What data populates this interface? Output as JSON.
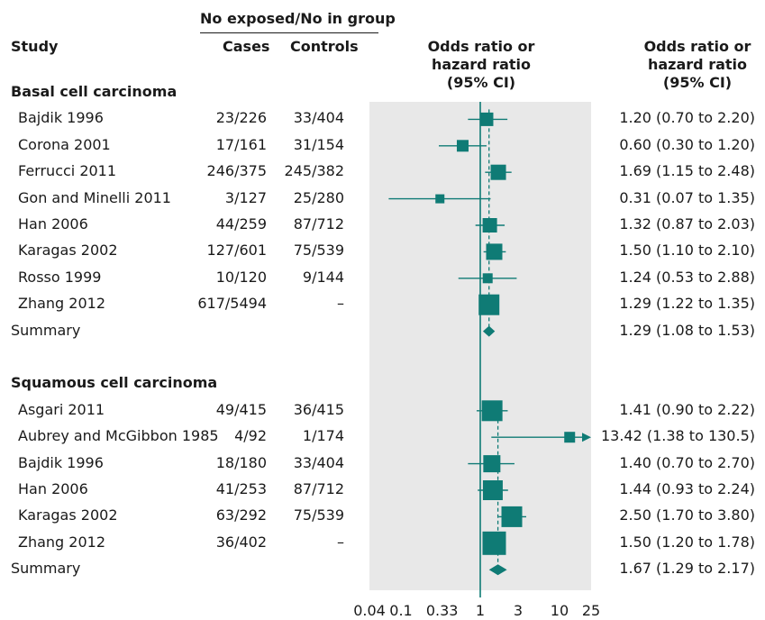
{
  "headers": {
    "group": "No exposed/No in group",
    "study": "Study",
    "cases": "Cases",
    "controls": "Controls",
    "plot_col": [
      "Odds ratio or",
      "hazard ratio",
      "(95% CI)"
    ],
    "text_col": [
      "Odds ratio or",
      "hazard ratio",
      "(95% CI)"
    ]
  },
  "colors": {
    "mark": "#0f7b75",
    "panel": "#e8e8e8",
    "text": "#1a1a1a"
  },
  "chart_data": {
    "type": "forest",
    "x_scale": "log",
    "xlim": [
      0.04,
      25
    ],
    "ticks": [
      "0.04",
      "0.1",
      "0.33",
      "1",
      "3",
      "10",
      "25"
    ],
    "sections": [
      {
        "title": "Basal cell carcinoma",
        "studies": [
          {
            "label": "Bajdik 1996",
            "cases": "23/226",
            "controls": "33/404",
            "est": 1.2,
            "lo": 0.7,
            "hi": 2.2,
            "ci_text": "1.20 (0.70 to 2.20)",
            "weight": 0.45
          },
          {
            "label": "Corona 2001",
            "cases": "17/161",
            "controls": "31/154",
            "est": 0.6,
            "lo": 0.3,
            "hi": 1.2,
            "ci_text": "0.60 (0.30 to 1.20)",
            "weight": 0.35
          },
          {
            "label": "Ferrucci 2011",
            "cases": "246/375",
            "controls": "245/382",
            "est": 1.69,
            "lo": 1.15,
            "hi": 2.48,
            "ci_text": "1.69 (1.15 to 2.48)",
            "weight": 0.55
          },
          {
            "label": "Gon and Minelli 2011",
            "cases": "3/127",
            "controls": "25/280",
            "est": 0.31,
            "lo": 0.07,
            "hi": 1.35,
            "ci_text": "0.31 (0.07 to 1.35)",
            "weight": 0.2
          },
          {
            "label": "Han 2006",
            "cases": "44/259",
            "controls": "87/712",
            "est": 1.32,
            "lo": 0.87,
            "hi": 2.03,
            "ci_text": "1.32 (0.87 to 2.03)",
            "weight": 0.5
          },
          {
            "label": "Karagas 2002",
            "cases": "127/601",
            "controls": "75/539",
            "est": 1.5,
            "lo": 1.1,
            "hi": 2.1,
            "ci_text": "1.50 (1.10 to 2.10)",
            "weight": 0.6
          },
          {
            "label": "Rosso 1999",
            "cases": "10/120",
            "controls": "9/144",
            "est": 1.24,
            "lo": 0.53,
            "hi": 2.88,
            "ci_text": "1.24 (0.53 to 2.88)",
            "weight": 0.25
          },
          {
            "label": "Zhang 2012",
            "cases": "617/5494",
            "controls": "–",
            "est": 1.29,
            "lo": 1.22,
            "hi": 1.35,
            "ci_text": "1.29 (1.22 to 1.35)",
            "weight": 0.85
          }
        ],
        "summary": {
          "label": "Summary",
          "est": 1.29,
          "lo": 1.08,
          "hi": 1.53,
          "ci_text": "1.29 (1.08 to 1.53)"
        }
      },
      {
        "title": "Squamous cell carcinoma",
        "studies": [
          {
            "label": "Asgari 2011",
            "cases": "49/415",
            "controls": "36/415",
            "est": 1.41,
            "lo": 0.9,
            "hi": 2.22,
            "ci_text": "1.41 (0.90 to 2.22)",
            "weight": 0.85
          },
          {
            "label": "Aubrey and McGibbon 1985",
            "cases": "4/92",
            "controls": "1/174",
            "est": 13.42,
            "lo": 1.38,
            "hi": 130.5,
            "ci_text": "13.42 (1.38 to 130.5)",
            "weight": 0.3
          },
          {
            "label": "Bajdik 1996",
            "cases": "18/180",
            "controls": "33/404",
            "est": 1.4,
            "lo": 0.7,
            "hi": 2.7,
            "ci_text": "1.40 (0.70 to 2.70)",
            "weight": 0.65
          },
          {
            "label": "Han 2006",
            "cases": "41/253",
            "controls": "87/712",
            "est": 1.44,
            "lo": 0.93,
            "hi": 2.24,
            "ci_text": "1.44 (0.93 to 2.24)",
            "weight": 0.8
          },
          {
            "label": "Karagas 2002",
            "cases": "63/292",
            "controls": "75/539",
            "est": 2.5,
            "lo": 1.7,
            "hi": 3.8,
            "ci_text": "2.50 (1.70 to 3.80)",
            "weight": 0.85
          },
          {
            "label": "Zhang 2012",
            "cases": "36/402",
            "controls": "–",
            "est": 1.5,
            "lo": 1.2,
            "hi": 1.78,
            "ci_text": "1.50 (1.20 to 1.78)",
            "weight": 1.0
          }
        ],
        "summary": {
          "label": "Summary",
          "est": 1.67,
          "lo": 1.29,
          "hi": 2.17,
          "ci_text": "1.67 (1.29 to 2.17)"
        }
      }
    ]
  }
}
